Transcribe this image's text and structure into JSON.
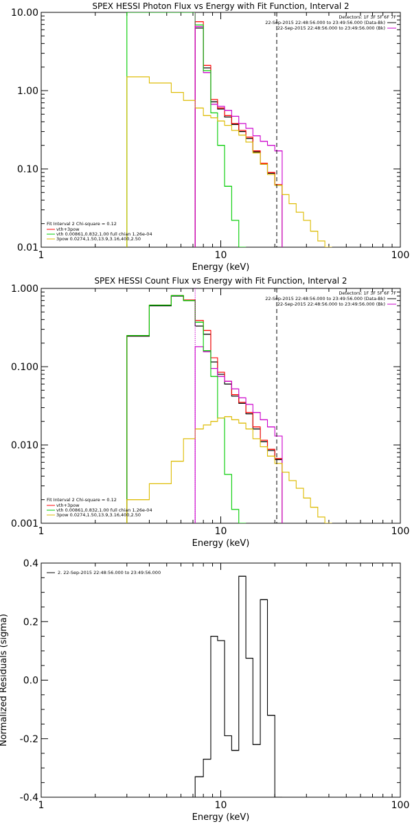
{
  "colors": {
    "black": "#000000",
    "red": "#ff0000",
    "magenta": "#cc00cc",
    "green": "#00cc00",
    "yellow": "#ddbb00"
  },
  "chart_data": [
    {
      "type": "line",
      "title": "SPEX HESSI Photon Flux vs Energy with Fit Function, Interval 2",
      "xlabel": "Energy (keV)",
      "ylabel": "",
      "xscale": "log",
      "yscale": "log",
      "xlim": [
        1,
        100
      ],
      "ylim": [
        0.01,
        10
      ],
      "xticks": [
        1,
        10,
        100
      ],
      "xtick_labels": [
        "1",
        "10",
        "100"
      ],
      "yticks": [
        0.01,
        0.1,
        1,
        10
      ],
      "ytick_labels": [
        "0.01",
        "0.10",
        "1.00",
        "10.00"
      ],
      "grid": false,
      "vlines": [
        {
          "x": 7.2,
          "style": "dotted",
          "color": "magenta"
        },
        {
          "x": 20.5,
          "style": "dashed",
          "color": "black"
        }
      ],
      "top_right_text": [
        {
          "text": "Detectors: 1F 3F 5F 6F 7F",
          "line": null
        },
        {
          "text": "22-Sep-2015 22:48:56.000 to 23:49:56.000 (Data-Bk)",
          "line": "black"
        },
        {
          "text": "22-Sep-2015 22:48:56.000 to 23:49:56.000 (Bk)",
          "line": "magenta"
        }
      ],
      "legend_title": "Fit Interval 2   Chi-square = 0.12",
      "legend": [
        {
          "label": "vth+3pow",
          "color": "red"
        },
        {
          "label": "vth 0.00861,0.832,1.00   full chian 1.26e-04",
          "color": "green"
        },
        {
          "label": "3pow 0.0274,1.50,13.9,3.16,400,2.50",
          "color": "yellow"
        }
      ],
      "series": [
        {
          "color": "black",
          "x": [
            7.2,
            8.0,
            8.8,
            9.6,
            10.5,
            11.5,
            12.6,
            13.8,
            15.1,
            16.6,
            18.2,
            20.0
          ],
          "y": [
            6.3,
            1.95,
            0.72,
            0.58,
            0.46,
            0.37,
            0.3,
            0.245,
            0.165,
            0.115,
            0.088,
            0.062
          ]
        },
        {
          "color": "red",
          "x": [
            7.2,
            8.0,
            8.8,
            9.6,
            10.5,
            11.5,
            12.6,
            13.8,
            15.1,
            16.6,
            18.2,
            20.0
          ],
          "y": [
            7.6,
            2.1,
            0.77,
            0.6,
            0.48,
            0.38,
            0.31,
            0.255,
            0.17,
            0.118,
            0.09,
            0.063
          ]
        },
        {
          "color": "magenta",
          "x": [
            7.2,
            8.0,
            8.8,
            9.6,
            10.5,
            11.5,
            12.6,
            13.8,
            15.1,
            16.6,
            18.2,
            20.0
          ],
          "y": [
            6.6,
            1.7,
            0.67,
            0.63,
            0.56,
            0.47,
            0.38,
            0.33,
            0.265,
            0.225,
            0.2,
            0.17
          ]
        },
        {
          "color": "green",
          "x": [
            3.0,
            7.2,
            8.0,
            8.8,
            9.6,
            10.5,
            11.5,
            12.6
          ],
          "y": [
            10.0,
            6.9,
            1.8,
            0.52,
            0.2,
            0.06,
            0.022,
            0.01
          ]
        },
        {
          "color": "yellow",
          "x": [
            3.0,
            4.0,
            5.3,
            6.2,
            7.2,
            8.0,
            8.8,
            9.6,
            10.5,
            11.5,
            12.6,
            13.8,
            15.1,
            16.6,
            18.2,
            20.0,
            22.0,
            24.0,
            26.3,
            28.9,
            31.6,
            34.7,
            38.0
          ],
          "y": [
            1.5,
            1.25,
            0.95,
            0.75,
            0.6,
            0.48,
            0.45,
            0.41,
            0.36,
            0.31,
            0.27,
            0.22,
            0.16,
            0.115,
            0.085,
            0.062,
            0.047,
            0.036,
            0.028,
            0.022,
            0.016,
            0.012,
            0.01
          ]
        }
      ]
    },
    {
      "type": "line",
      "title": "SPEX HESSI Count Flux vs Energy with Fit Function, Interval 2",
      "xlabel": "Energy (keV)",
      "ylabel": "",
      "xscale": "log",
      "yscale": "log",
      "xlim": [
        1,
        100
      ],
      "ylim": [
        0.001,
        1
      ],
      "xticks": [
        1,
        10,
        100
      ],
      "xtick_labels": [
        "1",
        "10",
        "100"
      ],
      "yticks": [
        0.001,
        0.01,
        0.1,
        1
      ],
      "ytick_labels": [
        "0.001",
        "0.010",
        "0.100",
        "1.000"
      ],
      "grid": false,
      "vlines": [
        {
          "x": 7.2,
          "style": "dotted",
          "color": "magenta"
        },
        {
          "x": 20.5,
          "style": "dashed",
          "color": "black"
        }
      ],
      "top_right_text": [
        {
          "text": "Detectors: 1F 3F 5F 6F 7F",
          "line": null
        },
        {
          "text": "22-Sep-2015 22:48:56.000 to 23:49:56.000 (Data-Bk)",
          "line": "black"
        },
        {
          "text": "22-Sep-2015 22:48:56.000 to 23:49:56.000 (Bk)",
          "line": "magenta"
        }
      ],
      "legend_title": "Fit Interval 2   Chi-square = 0.12",
      "legend": [
        {
          "label": "vth+3pow",
          "color": "red"
        },
        {
          "label": "vth 0.00861,0.832,1.00   full chian 1.26e-04",
          "color": "green"
        },
        {
          "label": "3pow 0.0274,1.50,13.9,3.16,400,2.50",
          "color": "yellow"
        }
      ],
      "series": [
        {
          "color": "black",
          "x": [
            3.0,
            4.0,
            5.3,
            6.2,
            7.2,
            8.0,
            8.8,
            9.6,
            10.5,
            11.5,
            12.6,
            13.8,
            15.1,
            16.6,
            18.2,
            20.0
          ],
          "y": [
            0.245,
            0.6,
            0.8,
            0.7,
            0.33,
            0.26,
            0.115,
            0.08,
            0.06,
            0.042,
            0.034,
            0.025,
            0.016,
            0.011,
            0.0085,
            0.0065
          ]
        },
        {
          "color": "red",
          "x": [
            3.0,
            4.0,
            5.3,
            6.2,
            7.2,
            8.0,
            8.8,
            9.6,
            10.5,
            11.5,
            12.6,
            13.8,
            15.1,
            16.6,
            18.2,
            20.0
          ],
          "y": [
            0.25,
            0.61,
            0.81,
            0.71,
            0.39,
            0.29,
            0.13,
            0.085,
            0.065,
            0.044,
            0.035,
            0.026,
            0.017,
            0.0115,
            0.0088,
            0.0067
          ]
        },
        {
          "color": "magenta",
          "x": [
            7.2,
            8.0,
            8.8,
            9.6,
            10.5,
            11.5,
            12.6,
            13.8,
            15.1,
            16.6,
            18.2,
            20.0
          ],
          "y": [
            0.18,
            0.155,
            0.095,
            0.075,
            0.065,
            0.052,
            0.04,
            0.033,
            0.026,
            0.021,
            0.017,
            0.013
          ]
        },
        {
          "color": "green",
          "x": [
            3.0,
            4.0,
            5.3,
            6.2,
            7.2,
            8.0,
            8.8,
            9.6,
            10.5,
            11.5,
            12.6
          ],
          "y": [
            0.25,
            0.61,
            0.81,
            0.7,
            0.37,
            0.16,
            0.075,
            0.022,
            0.0042,
            0.0015,
            0.001
          ]
        },
        {
          "color": "yellow",
          "x": [
            3.0,
            4.0,
            5.3,
            6.2,
            7.2,
            8.0,
            8.8,
            9.6,
            10.5,
            11.5,
            12.6,
            13.8,
            15.1,
            16.6,
            18.2,
            20.0,
            22.0,
            24.0,
            26.3,
            28.9,
            31.6,
            34.7,
            38.0
          ],
          "y": [
            0.002,
            0.0032,
            0.0062,
            0.012,
            0.016,
            0.018,
            0.02,
            0.022,
            0.023,
            0.021,
            0.019,
            0.016,
            0.012,
            0.0095,
            0.0072,
            0.0058,
            0.0045,
            0.0035,
            0.0028,
            0.0021,
            0.0016,
            0.0012,
            0.001
          ]
        }
      ]
    },
    {
      "type": "line",
      "title": "",
      "xlabel": "Energy (keV)",
      "ylabel": "Normalized Residuals (sigma)",
      "xscale": "log",
      "yscale": "linear",
      "xlim": [
        1,
        100
      ],
      "ylim": [
        -0.4,
        0.4
      ],
      "xticks": [
        1,
        10,
        100
      ],
      "xtick_labels": [
        "1",
        "10",
        "100"
      ],
      "yticks": [
        -0.4,
        -0.2,
        0.0,
        0.2,
        0.4
      ],
      "ytick_labels": [
        "-0.4",
        "-0.2",
        "0.0",
        "0.2",
        "0.4"
      ],
      "grid": false,
      "vlines": [],
      "top_left_legend": [
        {
          "text": "2. 22-Sep-2015 22:48:56.000 to 23:49:56.000",
          "line": "black"
        }
      ],
      "series": [
        {
          "color": "black",
          "x": [
            7.2,
            8.0,
            8.8,
            9.6,
            10.5,
            11.5,
            12.6,
            13.8,
            15.1,
            16.6,
            18.2,
            20.0
          ],
          "y": [
            -0.33,
            -0.27,
            0.15,
            0.135,
            -0.19,
            -0.24,
            0.355,
            0.075,
            -0.22,
            0.275,
            -0.12,
            -0.4
          ]
        }
      ]
    }
  ]
}
